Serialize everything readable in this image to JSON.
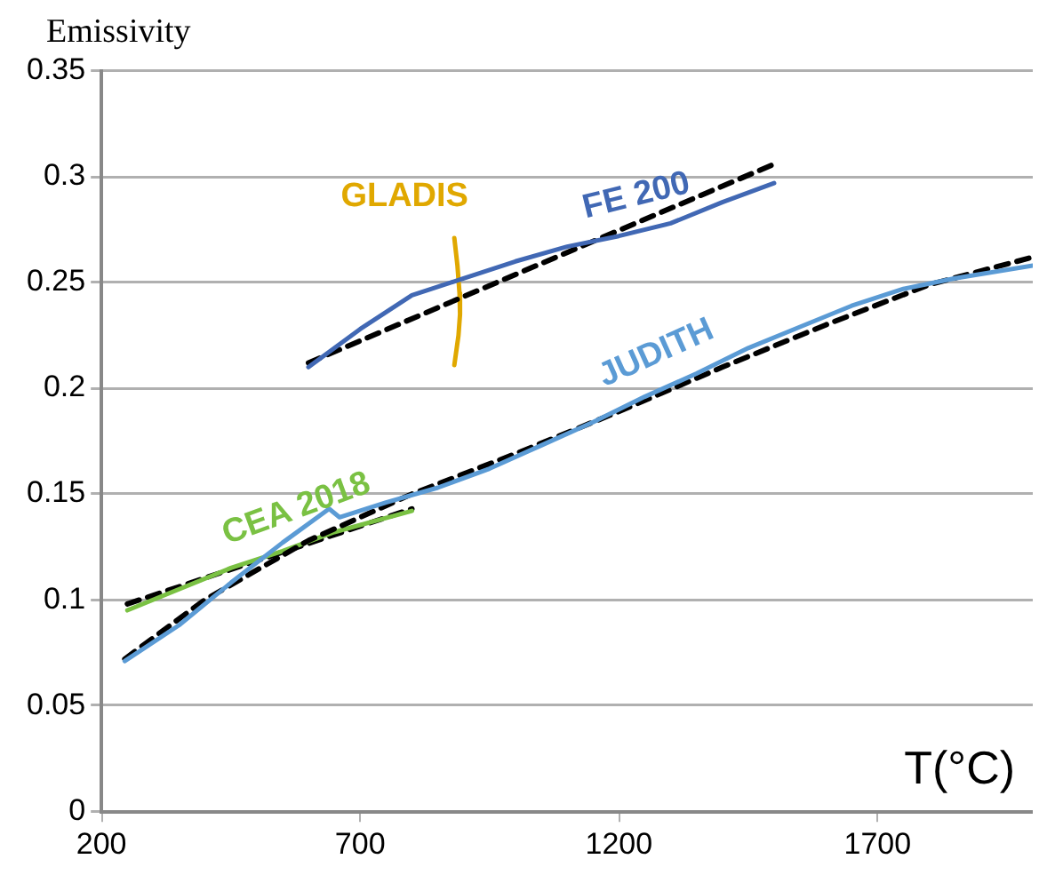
{
  "chart_data": {
    "type": "line",
    "xlabel": "T(°C)",
    "ylabel": "Emissivity",
    "xlim": [
      200,
      2000
    ],
    "xticks": [
      200,
      700,
      1200,
      1700
    ],
    "ylim": [
      0,
      0.35
    ],
    "yticks": [
      0,
      0.05,
      0.1,
      0.15,
      0.2,
      0.25,
      0.3,
      0.35
    ],
    "grid": "y",
    "legend": false,
    "marker": "none",
    "line_style": "solid",
    "series": [
      {
        "name": "FE 200",
        "color": "#4168b4",
        "x": [
          600,
          700,
          800,
          900,
          1000,
          1100,
          1200,
          1300,
          1400,
          1500
        ],
        "values": [
          0.21,
          0.228,
          0.244,
          0.252,
          0.26,
          0.267,
          0.272,
          0.278,
          0.288,
          0.297
        ]
      },
      {
        "color": "#000000",
        "line_style": "dashed",
        "x": [
          600,
          1500
        ],
        "values": [
          0.212,
          0.306
        ]
      },
      {
        "name": "JUDITH",
        "color": "#5b9bd5",
        "x": [
          245,
          350,
          450,
          550,
          640,
          660,
          750,
          850,
          950,
          1050,
          1150,
          1250,
          1350,
          1450,
          1550,
          1650,
          1750,
          1850,
          2000
        ],
        "values": [
          0.071,
          0.088,
          0.108,
          0.127,
          0.143,
          0.139,
          0.146,
          0.153,
          0.162,
          0.173,
          0.184,
          0.196,
          0.207,
          0.219,
          0.229,
          0.239,
          0.247,
          0.252,
          0.258
        ]
      },
      {
        "color": "#000000",
        "line_style": "dashed",
        "x": [
          245,
          400,
          600,
          800,
          1000,
          1200,
          1400,
          1600,
          1800,
          2000
        ],
        "values": [
          0.072,
          0.1,
          0.128,
          0.15,
          0.169,
          0.189,
          0.21,
          0.23,
          0.249,
          0.262
        ]
      },
      {
        "name": "CEA 2018",
        "color": "#7ac143",
        "x": [
          250,
          350,
          450,
          550,
          650,
          800
        ],
        "values": [
          0.095,
          0.105,
          0.115,
          0.123,
          0.132,
          0.142
        ]
      },
      {
        "color": "#000000",
        "line_style": "dashed",
        "x": [
          250,
          800
        ],
        "values": [
          0.098,
          0.143
        ]
      },
      {
        "name": "GLADIS",
        "color": "#e0a800",
        "x": [
          882,
          888,
          892,
          893,
          890,
          882
        ],
        "values": [
          0.271,
          0.258,
          0.245,
          0.235,
          0.225,
          0.211
        ]
      }
    ]
  }
}
